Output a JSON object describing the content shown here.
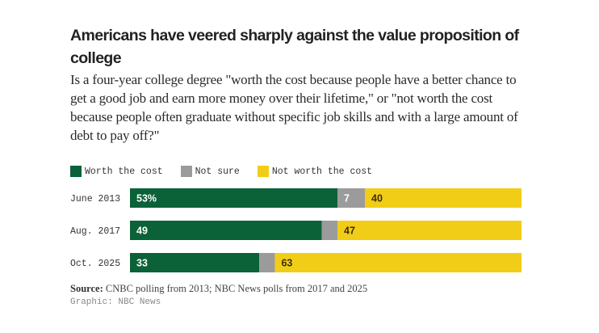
{
  "header": {
    "title": "Americans have veered sharply against the value proposition of college",
    "subtitle": "Is a four-year college degree \"worth the cost because people have a better chance to get a good job and earn more money over their lifetime,\" or \"not worth the cost because people often graduate without specific job skills and with a large amount of debt to pay off?\""
  },
  "footer": {
    "source_label": "Source:",
    "source_text": "CNBC polling from 2013; NBC News polls from 2017 and 2025",
    "credit": "Graphic: NBC News"
  },
  "chart_data": {
    "type": "bar",
    "orientation": "horizontal",
    "stacked": true,
    "title": "Americans have veered sharply against the value proposition of college",
    "categories": [
      "June 2013",
      "Aug. 2017",
      "Oct. 2025"
    ],
    "series": [
      {
        "name": "Worth the cost",
        "color": "#0b6138",
        "values": [
          53,
          49,
          33
        ],
        "labels": [
          "53%",
          "49",
          "33"
        ],
        "label_color": "#ffffff"
      },
      {
        "name": "Not sure",
        "color": "#9b9b9b",
        "values": [
          7,
          4,
          4
        ],
        "labels": [
          "7",
          "",
          ""
        ],
        "label_color": "#ffffff"
      },
      {
        "name": "Not worth the cost",
        "color": "#f2cd17",
        "values": [
          40,
          47,
          63
        ],
        "labels": [
          "40",
          "47",
          "63"
        ],
        "label_color": "#3a2f05"
      }
    ],
    "xlim": [
      0,
      100
    ],
    "grid": false,
    "legend": "top-left"
  }
}
